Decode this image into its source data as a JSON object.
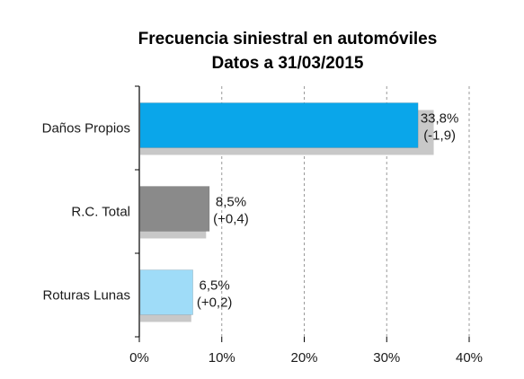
{
  "chart_data": {
    "type": "bar",
    "orientation": "horizontal",
    "title": "Frecuencia siniestral en automóviles",
    "subtitle": "Datos a 31/03/2015",
    "categories": [
      "Daños Propios",
      "R.C. Total",
      "Roturas Lunas"
    ],
    "values": [
      33.8,
      8.5,
      6.5
    ],
    "previous_values": [
      35.7,
      8.1,
      6.3
    ],
    "value_labels": [
      "33,8%",
      "8,5%",
      "6,5%"
    ],
    "change_labels": [
      "(-1,9)",
      "(+0,4)",
      "(+0,2)"
    ],
    "xlim": [
      0,
      40
    ],
    "x_ticks": [
      0,
      10,
      20,
      30,
      40
    ],
    "x_tick_labels": [
      "0%",
      "10%",
      "20%",
      "30%",
      "40%"
    ],
    "grid": "vertical dashed",
    "bar_colors": [
      "#0aa6ea",
      "#8a8a8a",
      "#9fdcf8"
    ],
    "shadow_color": "#c8c8c8",
    "xlabel": "",
    "ylabel": ""
  }
}
